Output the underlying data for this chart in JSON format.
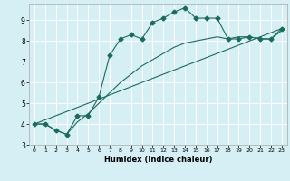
{
  "title": "",
  "xlabel": "Humidex (Indice chaleur)",
  "bg_color": "#d6eff5",
  "line_color": "#1a6b5a",
  "grid_color": "#ffffff",
  "xlim": [
    -0.5,
    23.5
  ],
  "ylim": [
    3.0,
    9.8
  ],
  "xticks": [
    0,
    1,
    2,
    3,
    4,
    5,
    6,
    7,
    8,
    9,
    10,
    11,
    12,
    13,
    14,
    15,
    16,
    17,
    18,
    19,
    20,
    21,
    22,
    23
  ],
  "yticks": [
    3,
    4,
    5,
    6,
    7,
    8,
    9
  ],
  "line1_x": [
    0,
    1,
    2,
    3,
    4,
    5,
    6,
    7,
    8,
    9,
    10,
    11,
    12,
    13,
    14,
    15,
    16,
    17,
    18,
    19,
    20,
    21,
    22,
    23
  ],
  "line1_y": [
    4.0,
    4.0,
    3.7,
    3.5,
    4.4,
    4.4,
    5.3,
    7.3,
    8.1,
    8.3,
    8.1,
    8.9,
    9.1,
    9.4,
    9.6,
    9.1,
    9.1,
    9.1,
    8.1,
    8.1,
    8.2,
    8.1,
    8.1,
    8.6
  ],
  "line2_x": [
    0,
    1,
    2,
    3,
    4,
    5,
    6,
    7,
    8,
    9,
    10,
    11,
    12,
    13,
    14,
    15,
    16,
    17,
    18,
    19,
    20,
    21,
    22,
    23
  ],
  "line2_y": [
    4.0,
    4.0,
    3.7,
    3.5,
    4.1,
    4.5,
    5.0,
    5.5,
    6.0,
    6.4,
    6.8,
    7.1,
    7.4,
    7.7,
    7.9,
    8.0,
    8.1,
    8.2,
    8.1,
    8.2,
    8.2,
    8.1,
    8.1,
    8.5
  ],
  "line3_x": [
    0,
    23
  ],
  "line3_y": [
    4.0,
    8.6
  ],
  "marker": "D",
  "markersize": 2.5,
  "lw": 0.8
}
